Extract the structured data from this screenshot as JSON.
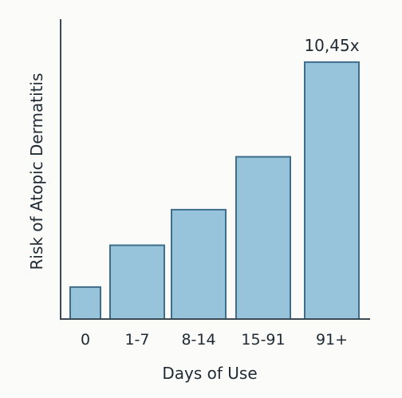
{
  "chart_data": {
    "type": "bar",
    "title": "",
    "xlabel": "Days of Use",
    "ylabel": "Risk of Atopic Dermatitis",
    "categories": [
      "0",
      "1-7",
      "8-14",
      "15-91",
      "91+"
    ],
    "values": [
      1.3,
      3.0,
      4.45,
      6.6,
      10.45
    ],
    "data_labels": [
      "",
      "",
      "",
      "",
      "10,45x"
    ],
    "ylim": [
      0,
      12.2
    ],
    "grid": false,
    "legend": "none",
    "colors": {
      "bar_fill": "#97c4da",
      "bar_stroke": "#3f6e8c",
      "axis": "#3c4a55",
      "text": "#1f2a33"
    }
  }
}
